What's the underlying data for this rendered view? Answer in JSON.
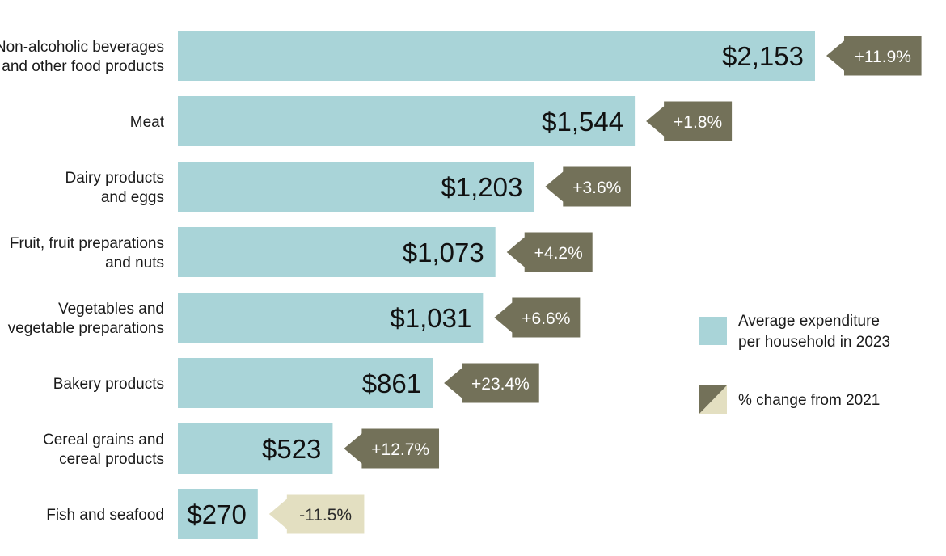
{
  "chart_data": {
    "type": "bar",
    "orientation": "horizontal",
    "categories": [
      [
        "Non-alcoholic beverages",
        "and other food products"
      ],
      [
        "Meat"
      ],
      [
        "Dairy products",
        "and eggs"
      ],
      [
        "Fruit, fruit preparations",
        "and nuts"
      ],
      [
        "Vegetables and",
        "vegetable preparations"
      ],
      [
        "Bakery products"
      ],
      [
        "Cereal grains and",
        "cereal products"
      ],
      [
        "Fish and seafood"
      ]
    ],
    "series": [
      {
        "name": "Average expenditure per household in 2023",
        "values": [
          2153,
          1544,
          1203,
          1073,
          1031,
          861,
          523,
          270
        ],
        "labels": [
          "$2,153",
          "$1,544",
          "$1,203",
          "$1,073",
          "$1,031",
          "$861",
          "$523",
          "$270"
        ]
      },
      {
        "name": "% change from 2021",
        "values": [
          11.9,
          1.8,
          3.6,
          4.2,
          6.6,
          23.4,
          12.7,
          -11.5
        ],
        "labels": [
          "+11.9%",
          "+1.8%",
          "+3.6%",
          "+4.2%",
          "+6.6%",
          "+23.4%",
          "+12.7%",
          "-11.5%"
        ]
      }
    ],
    "legend": {
      "placement": "right",
      "items": [
        {
          "lines": [
            "Average expenditure",
            "per household in 2023"
          ]
        },
        {
          "lines": [
            "% change from 2021"
          ]
        }
      ]
    },
    "colors": {
      "bar": "#a9d4d8",
      "positive_change": "#737159",
      "negative_change": "#e3dfc1"
    },
    "title": "",
    "xlabel": "",
    "ylabel": ""
  }
}
